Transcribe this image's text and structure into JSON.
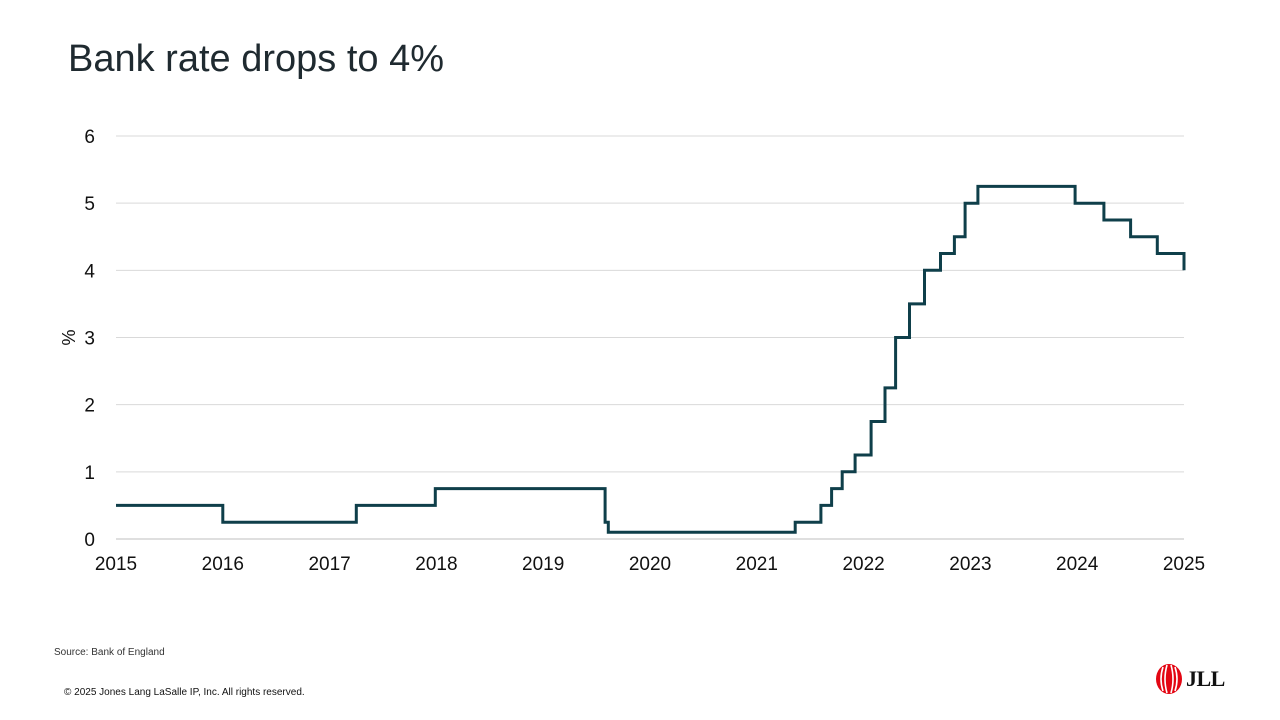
{
  "page": {
    "title": "Bank rate drops to 4%",
    "source": "Source: Bank of England",
    "copyright": "© 2025 Jones Lang LaSalle IP, Inc. All rights reserved.",
    "logo_text": "JLL",
    "colors": {
      "line": "#0f3f4a",
      "grid": "#d9d9d9",
      "logo_red": "#e30613"
    }
  },
  "chart_data": {
    "type": "line",
    "title": "Bank rate drops to 4%",
    "xlabel": "",
    "ylabel": "%",
    "xlim": [
      2015,
      2025
    ],
    "ylim": [
      0,
      6
    ],
    "xticks": [
      "2015",
      "2016",
      "2017",
      "2018",
      "2019",
      "2020",
      "2021",
      "2022",
      "2023",
      "2024",
      "2025"
    ],
    "yticks": [
      "0",
      "1",
      "2",
      "3",
      "4",
      "5",
      "6"
    ],
    "grid": true,
    "step": true,
    "series": [
      {
        "color": "#0f3f4a",
        "points": [
          [
            2015.0,
            0.5
          ],
          [
            2016.0,
            0.25
          ],
          [
            2017.25,
            0.5
          ],
          [
            2017.99,
            0.75
          ],
          [
            2019.58,
            0.25
          ],
          [
            2019.61,
            0.1
          ],
          [
            2021.36,
            0.25
          ],
          [
            2021.6,
            0.5
          ],
          [
            2021.7,
            0.75
          ],
          [
            2021.8,
            1.0
          ],
          [
            2021.92,
            1.25
          ],
          [
            2022.07,
            1.75
          ],
          [
            2022.2,
            2.25
          ],
          [
            2022.3,
            3.0
          ],
          [
            2022.43,
            3.5
          ],
          [
            2022.57,
            4.0
          ],
          [
            2022.72,
            4.25
          ],
          [
            2022.85,
            4.5
          ],
          [
            2022.95,
            5.0
          ],
          [
            2023.07,
            5.25
          ],
          [
            2023.98,
            5.0
          ],
          [
            2024.25,
            4.75
          ],
          [
            2024.5,
            4.5
          ],
          [
            2024.75,
            4.25
          ],
          [
            2025.0,
            4.0
          ]
        ]
      }
    ]
  }
}
